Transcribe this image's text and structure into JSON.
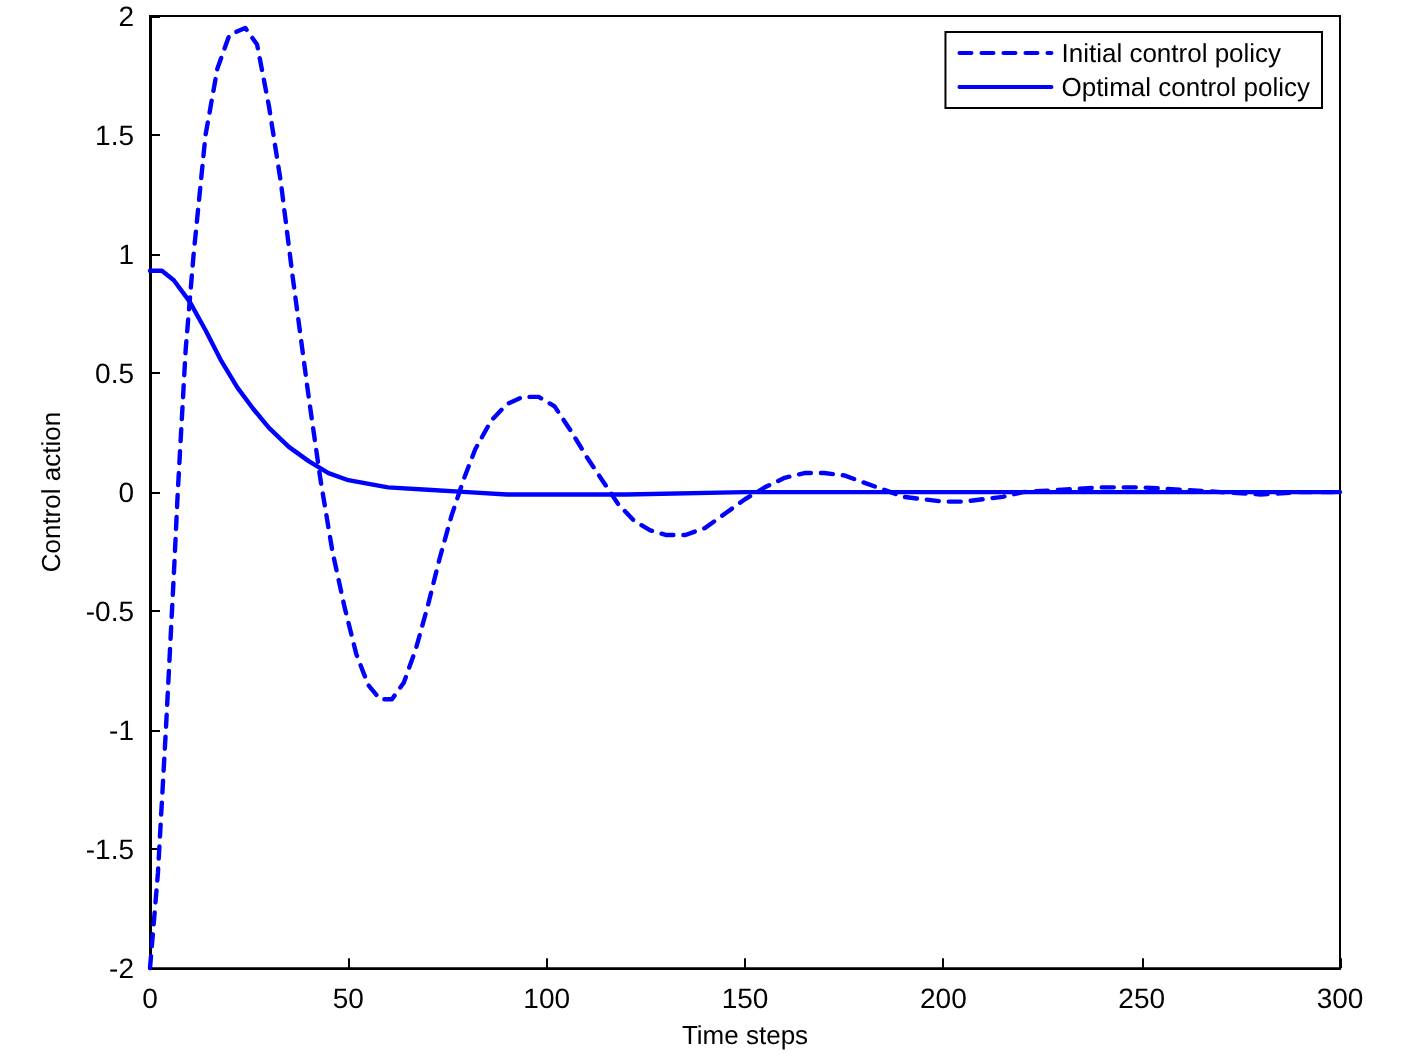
{
  "chart_data": {
    "type": "line",
    "xlabel": "Time steps",
    "ylabel": "Control action",
    "xlim": [
      0,
      300
    ],
    "xticks": [
      0,
      50,
      100,
      150,
      200,
      250,
      300
    ],
    "ylim": [
      -2,
      2
    ],
    "yticks": [
      -2,
      -1.5,
      -1,
      -0.5,
      0,
      0.5,
      1,
      1.5,
      2
    ],
    "grid": false,
    "legend": "top right",
    "marker": "none",
    "series": [
      {
        "name": "Initial control policy",
        "color": "#0000ff",
        "line_style": "dashed",
        "x": [
          0,
          2,
          4,
          6,
          7,
          9,
          11,
          14,
          17,
          20,
          24,
          27,
          30,
          33,
          36,
          40,
          43,
          46,
          49,
          52,
          55,
          58,
          61,
          64,
          67,
          70,
          73,
          76,
          79,
          82,
          86,
          90,
          94,
          98,
          102,
          106,
          110,
          114,
          118,
          122,
          126,
          130,
          135,
          140,
          145,
          150,
          155,
          160,
          165,
          170,
          175,
          180,
          185,
          190,
          195,
          200,
          205,
          210,
          215,
          220,
          230,
          240,
          250,
          260,
          270,
          280,
          290,
          300
        ],
        "values": [
          -2,
          -1.6,
          -1,
          -0.35,
          0,
          0.6,
          1,
          1.5,
          1.78,
          1.92,
          1.95,
          1.88,
          1.62,
          1.3,
          0.9,
          0.4,
          0.05,
          -0.25,
          -0.48,
          -0.68,
          -0.81,
          -0.87,
          -0.87,
          -0.8,
          -0.66,
          -0.48,
          -0.28,
          -0.1,
          0.05,
          0.18,
          0.3,
          0.37,
          0.4,
          0.4,
          0.36,
          0.26,
          0.15,
          0.05,
          -0.05,
          -0.12,
          -0.16,
          -0.18,
          -0.18,
          -0.15,
          -0.09,
          -0.03,
          0.02,
          0.06,
          0.08,
          0.08,
          0.07,
          0.04,
          0.01,
          -0.02,
          -0.03,
          -0.04,
          -0.04,
          -0.03,
          -0.02,
          0,
          0.01,
          0.02,
          0.02,
          0.01,
          0,
          -0.01,
          0,
          0
        ]
      },
      {
        "name": "Optimal control policy",
        "color": "#0000ff",
        "line_style": "solid",
        "x": [
          0,
          3,
          6,
          10,
          14,
          18,
          22,
          26,
          30,
          35,
          40,
          45,
          50,
          60,
          70,
          80,
          90,
          100,
          120,
          150,
          200,
          250,
          300
        ],
        "values": [
          0.93,
          0.93,
          0.89,
          0.8,
          0.68,
          0.55,
          0.44,
          0.35,
          0.27,
          0.19,
          0.13,
          0.08,
          0.05,
          0.02,
          0.01,
          0,
          -0.01,
          -0.01,
          -0.01,
          0,
          0,
          0,
          0
        ]
      }
    ]
  }
}
